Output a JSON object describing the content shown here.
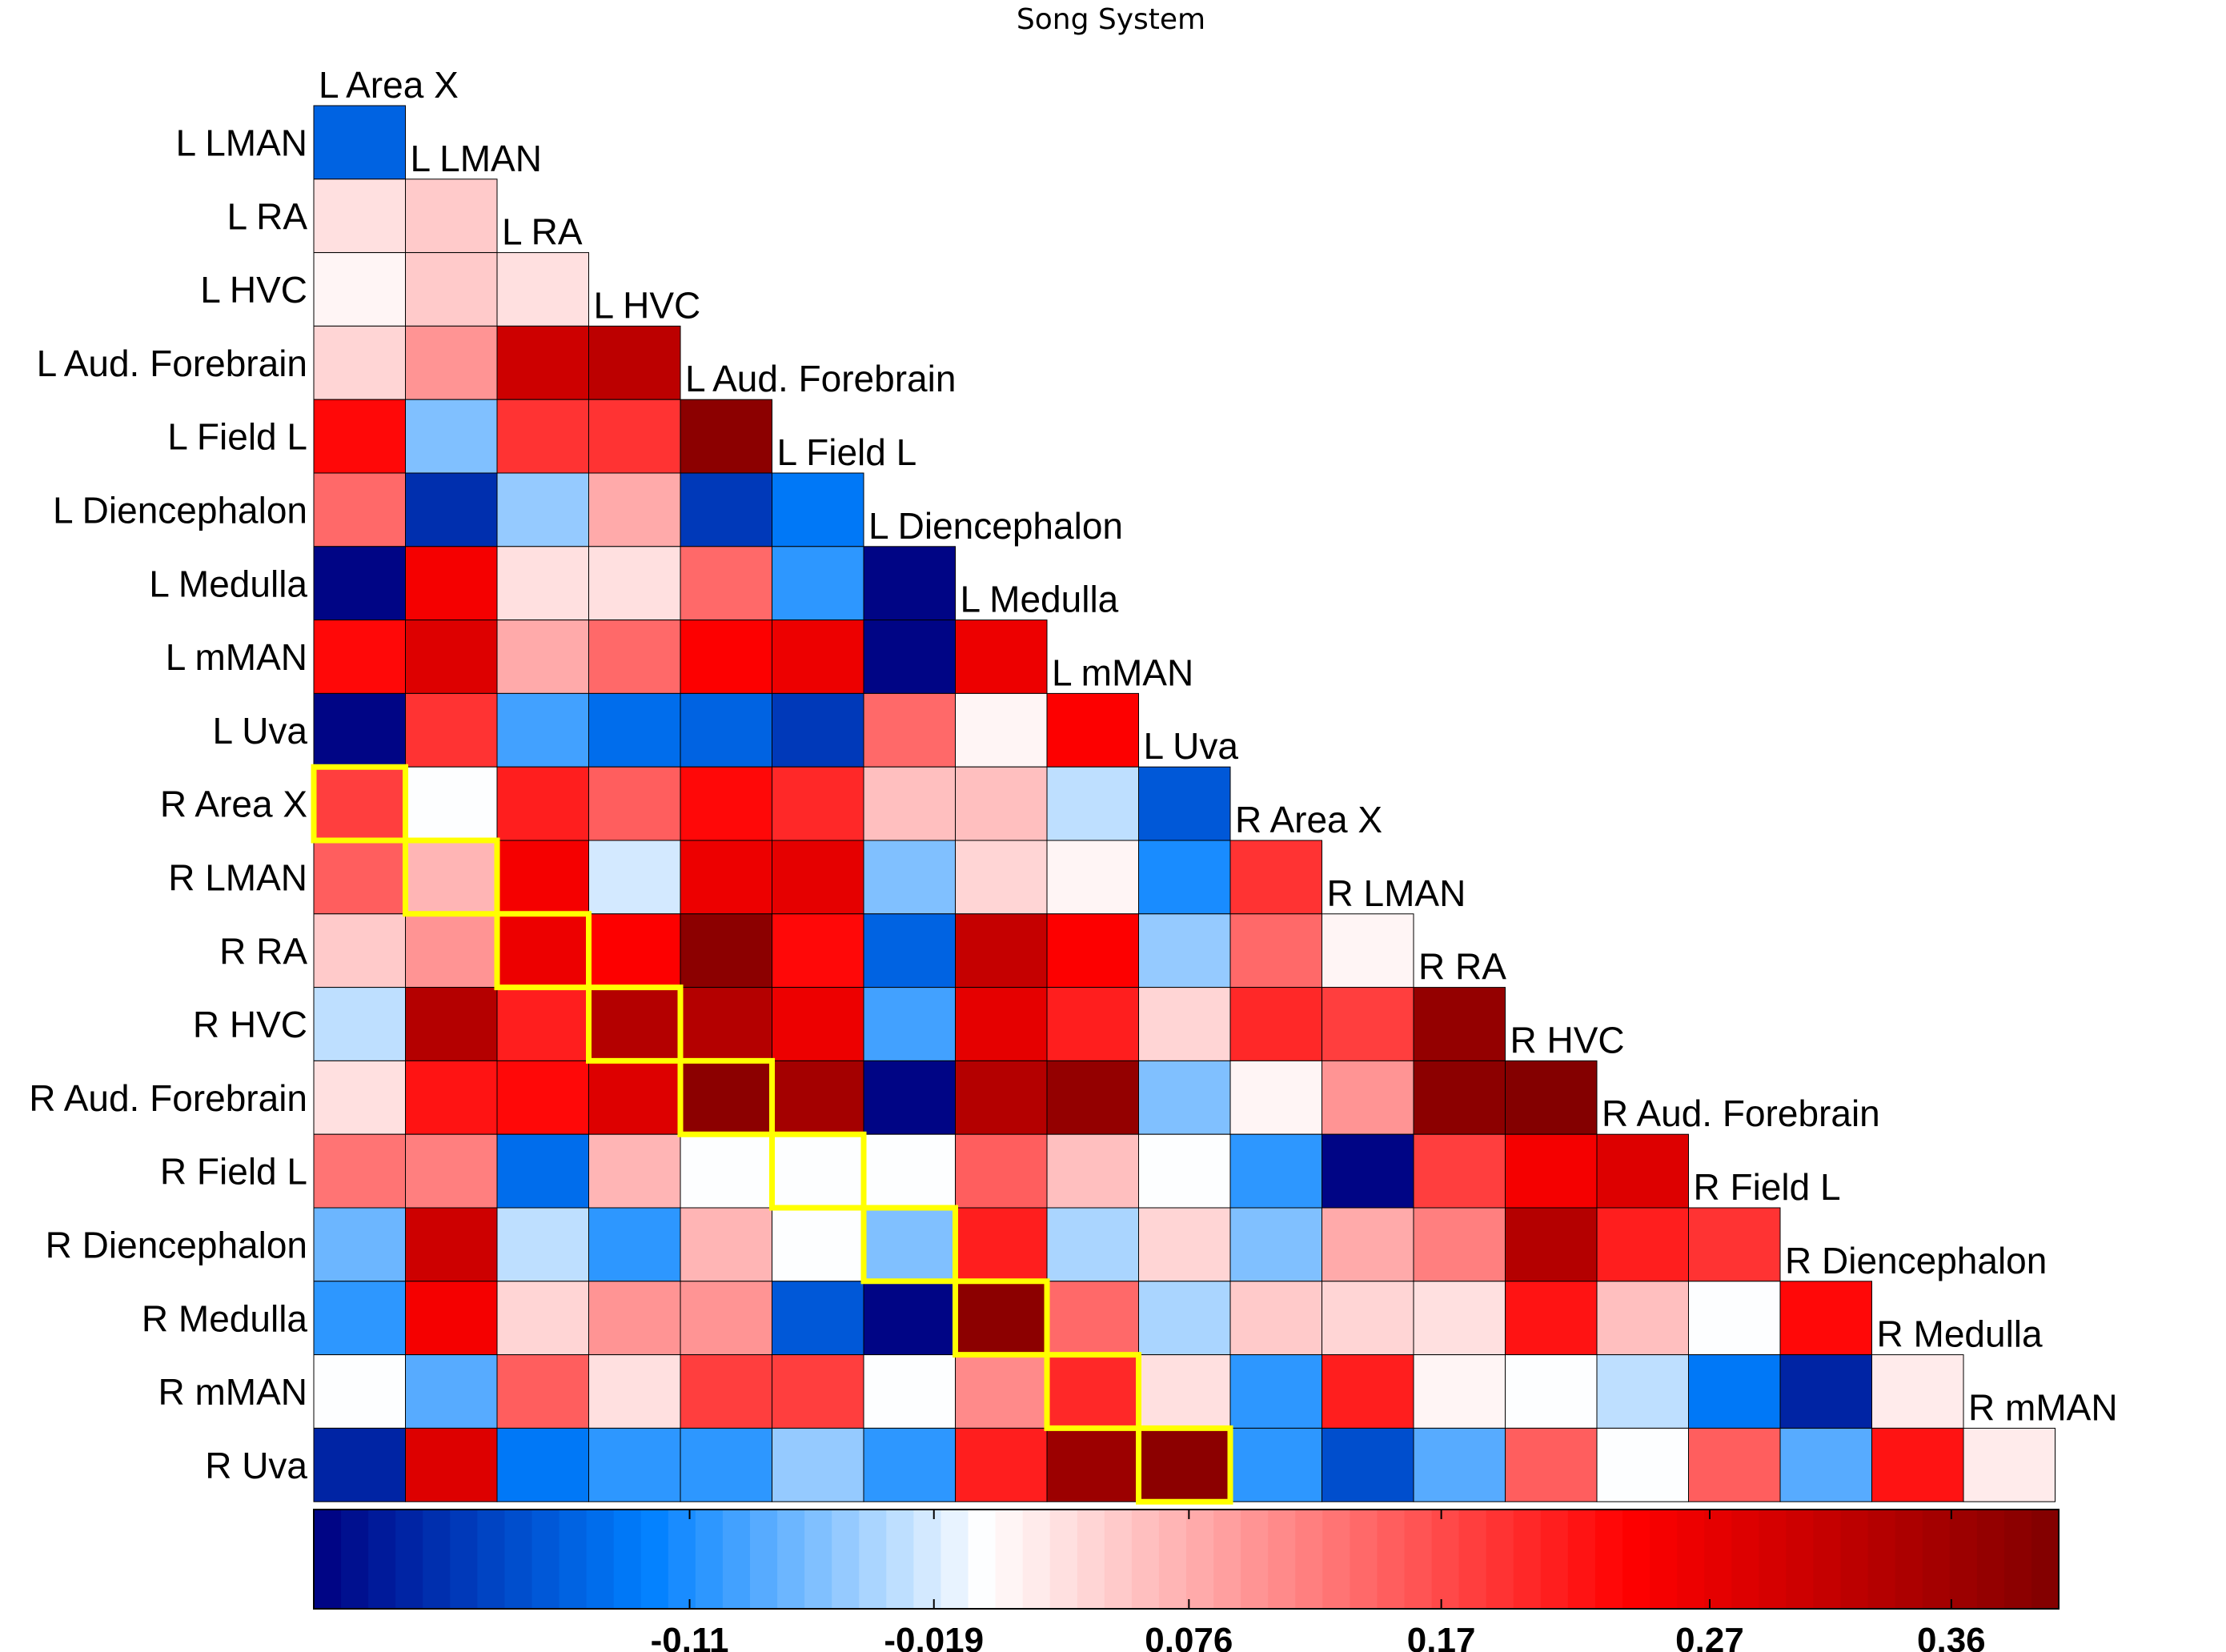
{
  "chart_data": {
    "type": "heatmap",
    "title": "Song System",
    "matrix_shape": "lower-triangular",
    "row_labels": [
      "L LMAN",
      "L RA",
      "L HVC",
      "L Aud. Forebrain",
      "L Field L",
      "L Diencephalon",
      "L Medulla",
      "L mMAN",
      "L Uva",
      "R Area X",
      "R LMAN",
      "R RA",
      "R HVC",
      "R Aud. Forebrain",
      "R Field L",
      "R Diencephalon",
      "R Medulla",
      "R mMAN",
      "R Uva"
    ],
    "column_labels": [
      "L Area X",
      "L LMAN",
      "L RA",
      "L HVC",
      "L Aud. Forebrain",
      "L Field L",
      "L Diencephalon",
      "L Medulla",
      "L mMAN",
      "L Uva",
      "R Area X",
      "R LMAN",
      "R RA",
      "R HVC",
      "R Aud. Forebrain",
      "R Field L",
      "R Diencephalon",
      "R Medulla",
      "R mMAN"
    ],
    "values": [
      [
        -0.15
      ],
      [
        0.03,
        0.05
      ],
      [
        0.01,
        0.05,
        0.03
      ],
      [
        0.04,
        0.1,
        0.3,
        0.32
      ],
      [
        0.23,
        -0.06,
        0.19,
        0.19,
        0.38
      ],
      [
        0.14,
        -0.2,
        -0.05,
        0.08,
        -0.19,
        -0.13
      ],
      [
        -0.24,
        0.25,
        0.03,
        0.03,
        0.14,
        -0.1,
        -0.25
      ],
      [
        0.23,
        0.28,
        0.08,
        0.14,
        0.24,
        0.26,
        -0.24,
        0.26
      ],
      [
        -0.24,
        0.19,
        -0.09,
        -0.14,
        -0.15,
        -0.19,
        0.14,
        0.01,
        0.24
      ],
      [
        0.18,
        0.0,
        0.21,
        0.15,
        0.23,
        0.2,
        0.06,
        0.06,
        -0.03,
        -0.16
      ],
      [
        0.15,
        0.07,
        0.25,
        -0.02,
        0.26,
        0.27,
        -0.06,
        0.04,
        0.01,
        -0.11,
        0.19
      ],
      [
        0.05,
        0.1,
        0.26,
        0.24,
        0.38,
        0.23,
        -0.15,
        0.31,
        0.24,
        -0.05,
        0.14,
        0.01
      ],
      [
        -0.03,
        0.33,
        0.21,
        0.33,
        0.33,
        0.26,
        -0.09,
        0.27,
        0.21,
        0.04,
        0.2,
        0.18,
        0.37
      ],
      [
        0.03,
        0.22,
        0.23,
        0.28,
        0.38,
        0.35,
        -0.24,
        0.33,
        0.37,
        -0.06,
        0.01,
        0.1,
        0.38,
        0.39
      ],
      [
        0.13,
        0.12,
        -0.14,
        0.07,
        0.0,
        0.0,
        0.0,
        0.15,
        0.06,
        0.0,
        -0.1,
        -0.24,
        0.18,
        0.25,
        0.28
      ],
      [
        -0.07,
        0.3,
        -0.03,
        -0.1,
        0.07,
        0.0,
        -0.06,
        0.21,
        -0.04,
        0.04,
        -0.06,
        0.08,
        0.12,
        0.33,
        0.21,
        0.19
      ],
      [
        -0.1,
        0.25,
        0.04,
        0.1,
        0.1,
        -0.16,
        -0.24,
        0.38,
        0.14,
        -0.04,
        0.05,
        0.04,
        0.03,
        0.22,
        0.06,
        0.0,
        0.23
      ],
      [
        0.0,
        -0.08,
        0.15,
        0.03,
        0.18,
        0.18,
        0.0,
        0.11,
        0.2,
        0.03,
        -0.1,
        0.21,
        0.01,
        0.0,
        -0.03,
        -0.13,
        -0.21,
        0.02
      ],
      [
        -0.21,
        0.28,
        -0.13,
        -0.1,
        -0.1,
        -0.05,
        -0.1,
        0.21,
        0.36,
        0.38,
        -0.1,
        -0.17,
        -0.08,
        0.15,
        0.0,
        0.15,
        -0.08,
        0.22,
        0.02
      ]
    ],
    "highlighted_cells": [
      [
        9,
        0
      ],
      [
        10,
        1
      ],
      [
        11,
        2
      ],
      [
        12,
        3
      ],
      [
        13,
        4
      ],
      [
        14,
        5
      ],
      [
        15,
        6
      ],
      [
        16,
        7
      ],
      [
        17,
        8
      ],
      [
        18,
        9
      ]
    ],
    "colorbar": {
      "tick_labels": [
        "-0.11",
        "-0.019",
        "0.076",
        "0.17",
        "0.27",
        "0.36"
      ],
      "tick_values": [
        -0.11,
        -0.019,
        0.076,
        0.17,
        0.27,
        0.36
      ],
      "range": [
        -0.25,
        0.4
      ]
    },
    "colors": {
      "highlight": "#ffff00",
      "grid": "#000000",
      "cold_end": "#000080",
      "mid": "#ffffff",
      "hot_end": "#800000"
    }
  }
}
